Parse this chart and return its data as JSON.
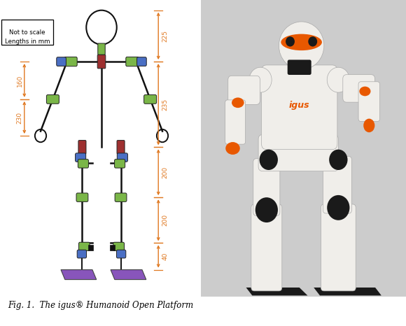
{
  "note_text": "Not to scale\nLengths in mm",
  "dimension_color": "#E07820",
  "body_color": "#111111",
  "green_color": "#7ab648",
  "blue_color": "#4a6fc4",
  "red_color": "#9e3030",
  "purple_color": "#8855bb",
  "bg_color": "#ffffff",
  "caption": "Fig. 1.  The igus® Humanoid Open Platform",
  "dim_labels_right": [
    "225",
    "235",
    "200",
    "200",
    "40"
  ],
  "dim_labels_left": [
    "160",
    "230"
  ]
}
